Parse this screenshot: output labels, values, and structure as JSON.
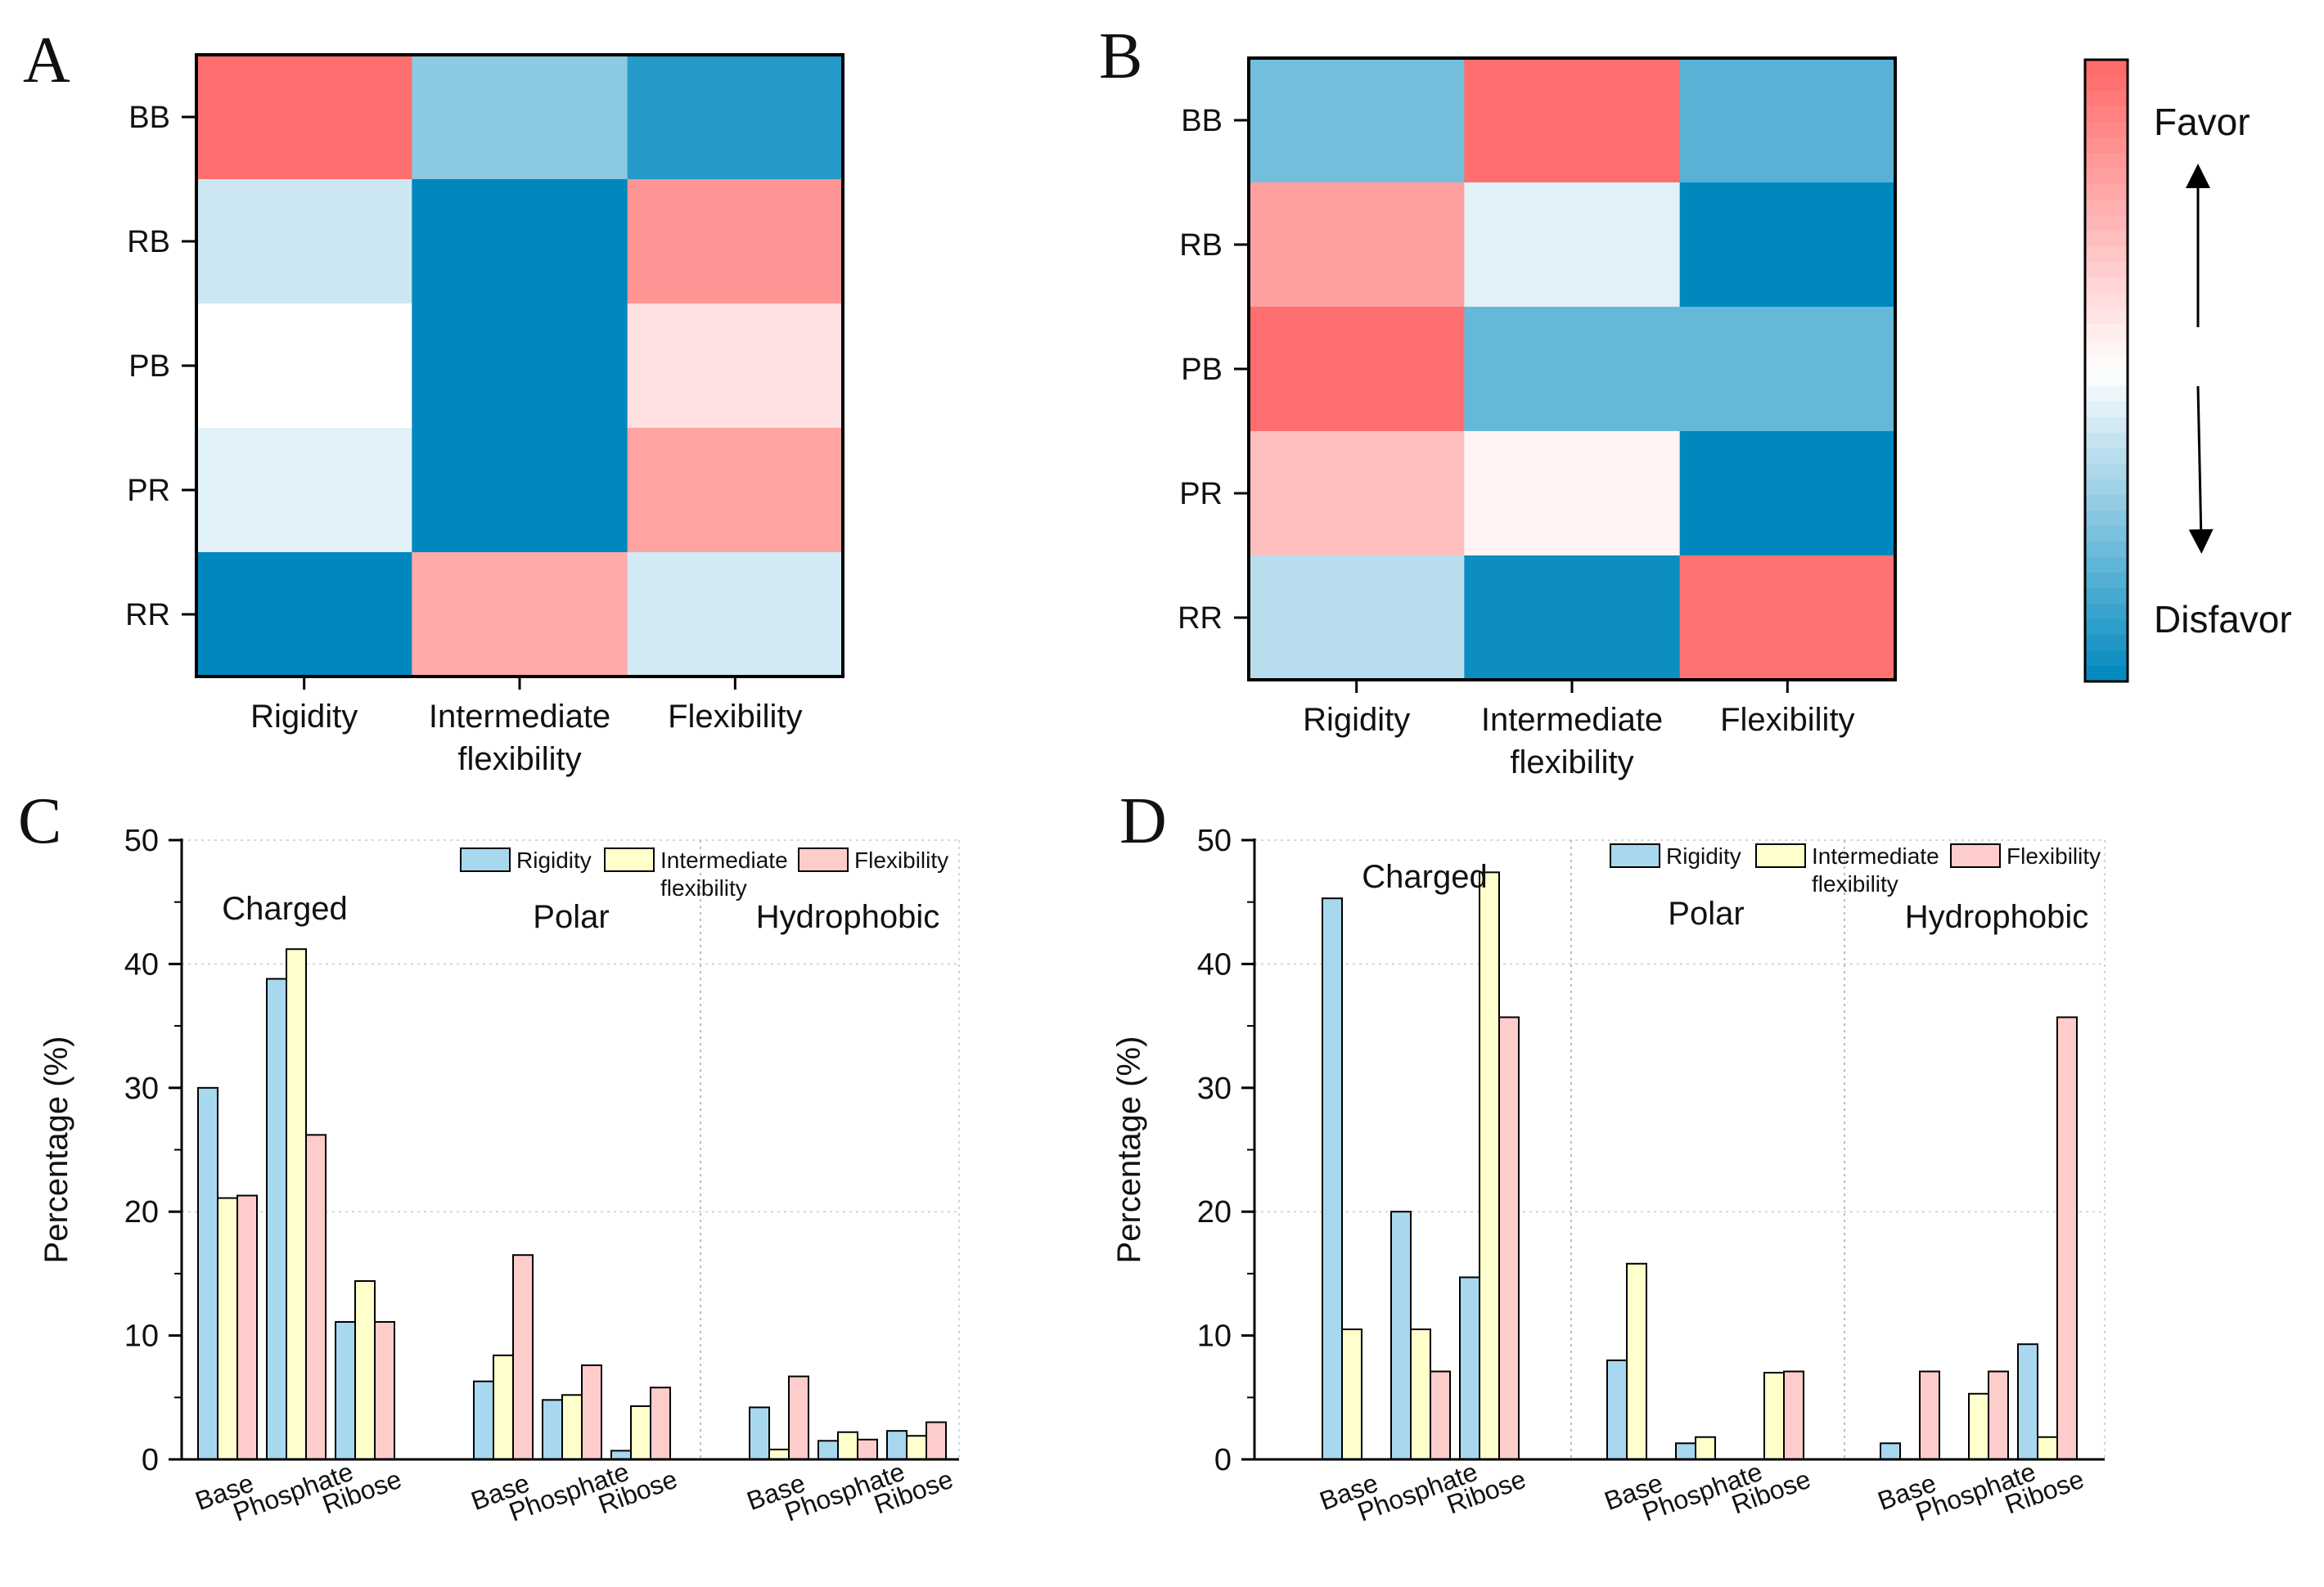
{
  "panel_letters": {
    "a": "A",
    "b": "B",
    "c": "C",
    "d": "D"
  },
  "colorbar": {
    "favor_label": "Favor",
    "disfavor_label": "Disfavor",
    "favor_color": "#ff6666",
    "neutral_color": "#ffffff",
    "disfavor_color": "#0088be"
  },
  "series_colors": {
    "Rigidity": "#a8d8f0",
    "Intermediate flexibility": "#ffffcc",
    "Flexibility": "#ffcccc"
  },
  "chart_data": [
    {
      "id": "A",
      "type": "heatmap",
      "rows": [
        "BB",
        "RB",
        "PB",
        "PR",
        "RR"
      ],
      "columns": [
        "Rigidity",
        "Intermediate flexibility",
        "Flexibility"
      ],
      "column_labels": [
        [
          "Rigidity"
        ],
        [
          "Intermediate",
          "flexibility"
        ],
        [
          "Flexibility"
        ]
      ],
      "values": [
        [
          0.95,
          -0.45,
          -0.85
        ],
        [
          -0.2,
          -1.0,
          0.7
        ],
        [
          0.0,
          -1.0,
          0.2
        ],
        [
          -0.12,
          -1.0,
          0.6
        ],
        [
          -1.0,
          0.55,
          -0.18
        ]
      ],
      "value_range": [
        -1,
        1
      ]
    },
    {
      "id": "B",
      "type": "heatmap",
      "rows": [
        "BB",
        "RB",
        "PB",
        "PR",
        "RR"
      ],
      "columns": [
        "Rigidity",
        "Intermediate flexibility",
        "Flexibility"
      ],
      "column_labels": [
        [
          "Rigidity"
        ],
        [
          "Intermediate",
          "flexibility"
        ],
        [
          "Flexibility"
        ]
      ],
      "values": [
        [
          -0.55,
          0.95,
          -0.65
        ],
        [
          0.62,
          -0.12,
          -1.0
        ],
        [
          0.95,
          -0.6,
          -0.6
        ],
        [
          0.42,
          0.08,
          -1.0
        ],
        [
          -0.28,
          -0.95,
          0.92
        ]
      ],
      "value_range": [
        -1,
        1
      ]
    },
    {
      "id": "C",
      "type": "bar",
      "ylabel": "Percentage (%)",
      "ylim": [
        0,
        50
      ],
      "yticks": [
        0,
        10,
        20,
        30,
        40,
        50
      ],
      "groups": [
        "Charged",
        "Polar",
        "Hydrophobic"
      ],
      "categories": [
        "Base",
        "Phosphate",
        "Ribose"
      ],
      "series": [
        {
          "name": "Rigidity",
          "values": [
            [
              30.0,
              38.8,
              11.1
            ],
            [
              6.3,
              4.8,
              0.7
            ],
            [
              4.2,
              1.5,
              2.3
            ]
          ]
        },
        {
          "name": "Intermediate flexibility",
          "values": [
            [
              21.1,
              41.2,
              14.4
            ],
            [
              8.4,
              5.2,
              4.3
            ],
            [
              0.8,
              2.2,
              1.9
            ]
          ]
        },
        {
          "name": "Flexibility",
          "values": [
            [
              21.3,
              26.2,
              11.1
            ],
            [
              16.5,
              7.6,
              5.8
            ],
            [
              6.7,
              1.6,
              3.0
            ]
          ]
        }
      ],
      "legend": {
        "labels": [
          "Rigidity",
          "Intermediate",
          "flexibility",
          "Flexibility"
        ],
        "placement": "top-right"
      }
    },
    {
      "id": "D",
      "type": "bar",
      "ylabel": "Percentage (%)",
      "ylim": [
        0,
        50
      ],
      "yticks": [
        0,
        10,
        20,
        30,
        40,
        50
      ],
      "groups": [
        "Charged",
        "Polar",
        "Hydrophobic"
      ],
      "categories": [
        "Base",
        "Phosphate",
        "Ribose"
      ],
      "series": [
        {
          "name": "Rigidity",
          "values": [
            [
              45.3,
              20.0,
              14.7
            ],
            [
              8.0,
              1.3,
              0.0
            ],
            [
              1.3,
              0.0,
              9.3
            ]
          ]
        },
        {
          "name": "Intermediate flexibility",
          "values": [
            [
              10.5,
              10.5,
              47.4
            ],
            [
              15.8,
              1.8,
              7.0
            ],
            [
              0.0,
              5.3,
              1.8
            ]
          ]
        },
        {
          "name": "Flexibility",
          "values": [
            [
              0.0,
              7.1,
              35.7
            ],
            [
              0.0,
              0.0,
              7.1
            ],
            [
              7.1,
              7.1,
              35.7
            ]
          ]
        }
      ],
      "legend": {
        "labels": [
          "Rigidity",
          "Intermediate",
          "flexibility",
          "Flexibility"
        ],
        "placement": "top-right"
      }
    }
  ]
}
